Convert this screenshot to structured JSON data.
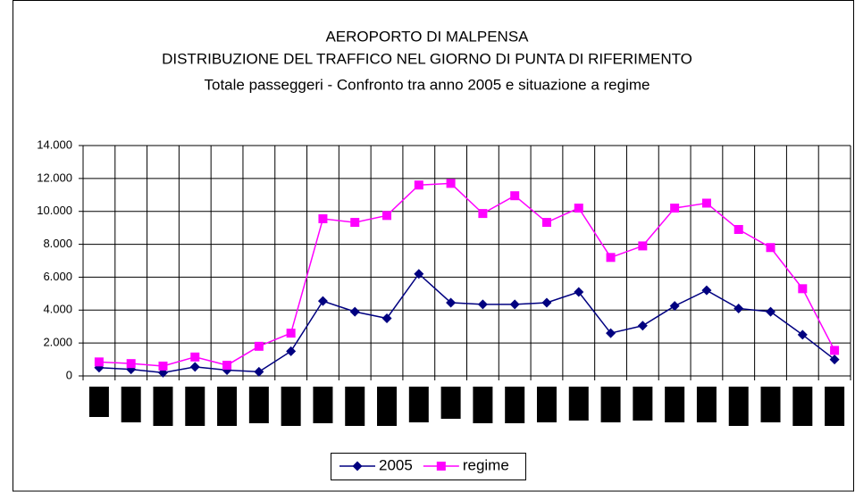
{
  "chart_data": {
    "type": "line",
    "title": "AEROPORTO DI MALPENSA",
    "subtitle": "DISTRIBUZIONE DEL TRAFFICO NEL GIORNO DI PUNTA DI RIFERIMENTO",
    "subtitle2": "Totale passeggeri - Confronto tra anno 2005 e situazione a regime",
    "categories": [
      null,
      null,
      null,
      null,
      null,
      null,
      null,
      null,
      null,
      null,
      null,
      null,
      null,
      null,
      null,
      null,
      null,
      null,
      null,
      null,
      null,
      null,
      null,
      null
    ],
    "series": [
      {
        "name": "2005",
        "color": "#000080",
        "marker": "diamond",
        "values": [
          500,
          400,
          200,
          550,
          350,
          250,
          1500,
          4550,
          3900,
          3500,
          6200,
          4450,
          4350,
          4350,
          4450,
          5100,
          2600,
          3050,
          4250,
          5200,
          4100,
          3900,
          2500,
          1000
        ]
      },
      {
        "name": "regime",
        "color": "#ff00ff",
        "marker": "square",
        "values": [
          850,
          750,
          600,
          1150,
          650,
          1800,
          2600,
          9550,
          9330,
          9750,
          11600,
          11700,
          9870,
          10950,
          9330,
          10200,
          7200,
          7900,
          10200,
          10500,
          8900,
          7800,
          5300,
          1550
        ]
      }
    ],
    "ylim": [
      0,
      14000
    ],
    "yticks": [
      0,
      {
        "value": 2000,
        "label": "2.000"
      },
      {
        "value": 4000,
        "label": "4.000"
      },
      {
        "value": 6000,
        "label": "6.000"
      },
      {
        "value": 8000,
        "label": "8.000"
      },
      {
        "value": 10000,
        "label": "10.000"
      },
      {
        "value": 12000,
        "label": "12.000"
      },
      {
        "value": 14000,
        "label": "14.000"
      }
    ],
    "grid": true,
    "legend": "bottom"
  }
}
